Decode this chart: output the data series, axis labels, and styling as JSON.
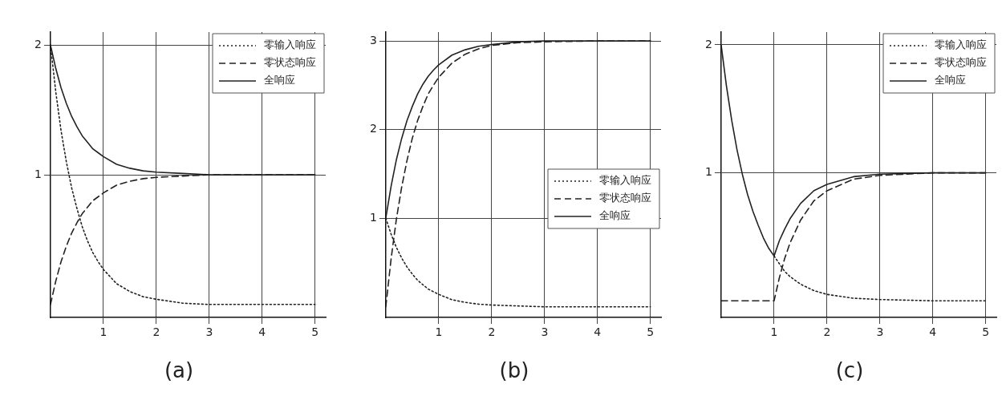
{
  "chart_data": [
    {
      "type": "line",
      "title": "(a)",
      "x": [
        0,
        0.1,
        0.2,
        0.3,
        0.4,
        0.5,
        0.6,
        0.7,
        0.8,
        0.9,
        1,
        1.25,
        1.5,
        1.75,
        2,
        2.5,
        3,
        4,
        5
      ],
      "xlim": [
        0,
        5.2
      ],
      "xticks": [
        1,
        2,
        3,
        4,
        5
      ],
      "ylim": [
        -0.1,
        2.1
      ],
      "yticks": [
        1,
        2
      ],
      "grid": true,
      "legend": "top right",
      "marker": "none",
      "series": [
        {
          "name": "零输入响应",
          "color": "#222222",
          "line_style": "dotted",
          "values": [
            2,
            1.64,
            1.34,
            1.1,
            0.9,
            0.74,
            0.6,
            0.49,
            0.4,
            0.33,
            0.27,
            0.16,
            0.1,
            0.06,
            0.04,
            0.01,
            0,
            0,
            0
          ]
        },
        {
          "name": "零状态响应",
          "color": "#222222",
          "line_style": "dashed",
          "values": [
            0,
            0.18,
            0.33,
            0.45,
            0.55,
            0.63,
            0.7,
            0.75,
            0.8,
            0.83,
            0.86,
            0.92,
            0.95,
            0.97,
            0.98,
            0.99,
            1,
            1,
            1
          ]
        },
        {
          "name": "全响应",
          "color": "#222222",
          "line_style": "solid",
          "values": [
            2,
            1.82,
            1.67,
            1.55,
            1.45,
            1.37,
            1.3,
            1.25,
            1.2,
            1.17,
            1.14,
            1.08,
            1.05,
            1.03,
            1.02,
            1.01,
            1,
            1,
            1
          ]
        }
      ]
    },
    {
      "type": "line",
      "title": "(b)",
      "x": [
        0,
        0.1,
        0.2,
        0.3,
        0.4,
        0.5,
        0.6,
        0.7,
        0.8,
        0.9,
        1,
        1.25,
        1.5,
        1.75,
        2,
        2.5,
        3,
        4,
        5
      ],
      "xlim": [
        0,
        5.2
      ],
      "xticks": [
        1,
        2,
        3,
        4,
        5
      ],
      "ylim": [
        -0.12,
        3.1
      ],
      "yticks": [
        1,
        2,
        3
      ],
      "grid": true,
      "legend": "right",
      "marker": "none",
      "series": [
        {
          "name": "零输入响应",
          "color": "#222222",
          "line_style": "dotted",
          "values": [
            1,
            0.82,
            0.67,
            0.55,
            0.45,
            0.37,
            0.3,
            0.25,
            0.2,
            0.17,
            0.14,
            0.08,
            0.05,
            0.03,
            0.02,
            0.01,
            0,
            0,
            0
          ]
        },
        {
          "name": "零状态响应",
          "color": "#222222",
          "line_style": "dashed",
          "values": [
            0,
            0.54,
            0.99,
            1.35,
            1.65,
            1.9,
            2.1,
            2.26,
            2.4,
            2.5,
            2.59,
            2.75,
            2.85,
            2.91,
            2.95,
            2.98,
            2.99,
            3,
            3
          ]
        },
        {
          "name": "全响应",
          "color": "#222222",
          "line_style": "solid",
          "values": [
            1,
            1.36,
            1.66,
            1.9,
            2.1,
            2.26,
            2.4,
            2.51,
            2.6,
            2.67,
            2.73,
            2.84,
            2.9,
            2.94,
            2.96,
            2.99,
            3,
            3,
            3
          ]
        }
      ]
    },
    {
      "type": "line",
      "title": "(c)",
      "x": [
        0,
        0.1,
        0.2,
        0.3,
        0.4,
        0.5,
        0.6,
        0.7,
        0.8,
        0.9,
        1,
        1.1,
        1.2,
        1.3,
        1.5,
        1.75,
        2,
        2.5,
        3,
        4,
        5
      ],
      "xlim": [
        0,
        5.2
      ],
      "xticks": [
        1,
        2,
        3,
        4,
        5
      ],
      "ylim": [
        -0.13,
        2.1
      ],
      "yticks": [
        1,
        2
      ],
      "grid": true,
      "legend": "top right",
      "marker": "none",
      "series": [
        {
          "name": "零输入响应",
          "color": "#222222",
          "line_style": "dotted",
          "values": [
            null,
            null,
            null,
            null,
            null,
            null,
            null,
            null,
            null,
            null,
            0.35,
            0.29,
            0.23,
            0.19,
            0.13,
            0.08,
            0.05,
            0.02,
            0.01,
            0,
            0
          ]
        },
        {
          "name": "零状态响应",
          "color": "#222222",
          "line_style": "dashed",
          "values": [
            0,
            0,
            0,
            0,
            0,
            0,
            0,
            0,
            0,
            0,
            0,
            0.18,
            0.33,
            0.45,
            0.63,
            0.78,
            0.86,
            0.95,
            0.98,
            1,
            1
          ]
        },
        {
          "name": "全响应",
          "color": "#222222",
          "line_style": "solid",
          "values": [
            2,
            1.68,
            1.41,
            1.18,
            0.99,
            0.83,
            0.7,
            0.59,
            0.49,
            0.41,
            0.35,
            0.47,
            0.56,
            0.64,
            0.76,
            0.86,
            0.91,
            0.97,
            0.99,
            1,
            1
          ]
        }
      ]
    }
  ]
}
